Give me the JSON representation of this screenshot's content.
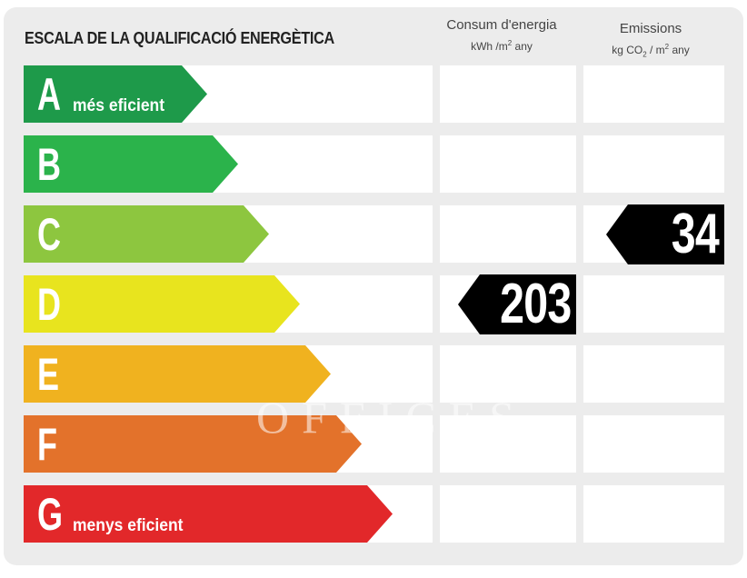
{
  "title": "ESCALA DE LA QUALIFICACIÓ ENERGÈTICA",
  "columns": {
    "energy": {
      "label": "Consum d'energia",
      "unit_main": "kWh /m",
      "unit_sup": "2",
      "unit_tail": " any"
    },
    "emissions": {
      "label": "Emissions",
      "unit_main": "kg CO",
      "unit_sub": "2",
      "unit_mid": " / m",
      "unit_sup": "2",
      "unit_tail": " any"
    }
  },
  "ratings": [
    {
      "letter": "A",
      "tag": "més eficient",
      "color": "#1e9a4a"
    },
    {
      "letter": "B",
      "tag": "",
      "color": "#2bb34b"
    },
    {
      "letter": "C",
      "tag": "",
      "color": "#8dc63f"
    },
    {
      "letter": "D",
      "tag": "",
      "color": "#e8e41e"
    },
    {
      "letter": "E",
      "tag": "",
      "color": "#f0b21f"
    },
    {
      "letter": "F",
      "tag": "",
      "color": "#e3722b"
    },
    {
      "letter": "G",
      "tag": "menys eficient",
      "color": "#e2282a"
    }
  ],
  "energy_rating": {
    "letter": "D",
    "value": "203"
  },
  "emissions_rating": {
    "letter": "C",
    "value": "34"
  },
  "watermark": "OFFICES"
}
